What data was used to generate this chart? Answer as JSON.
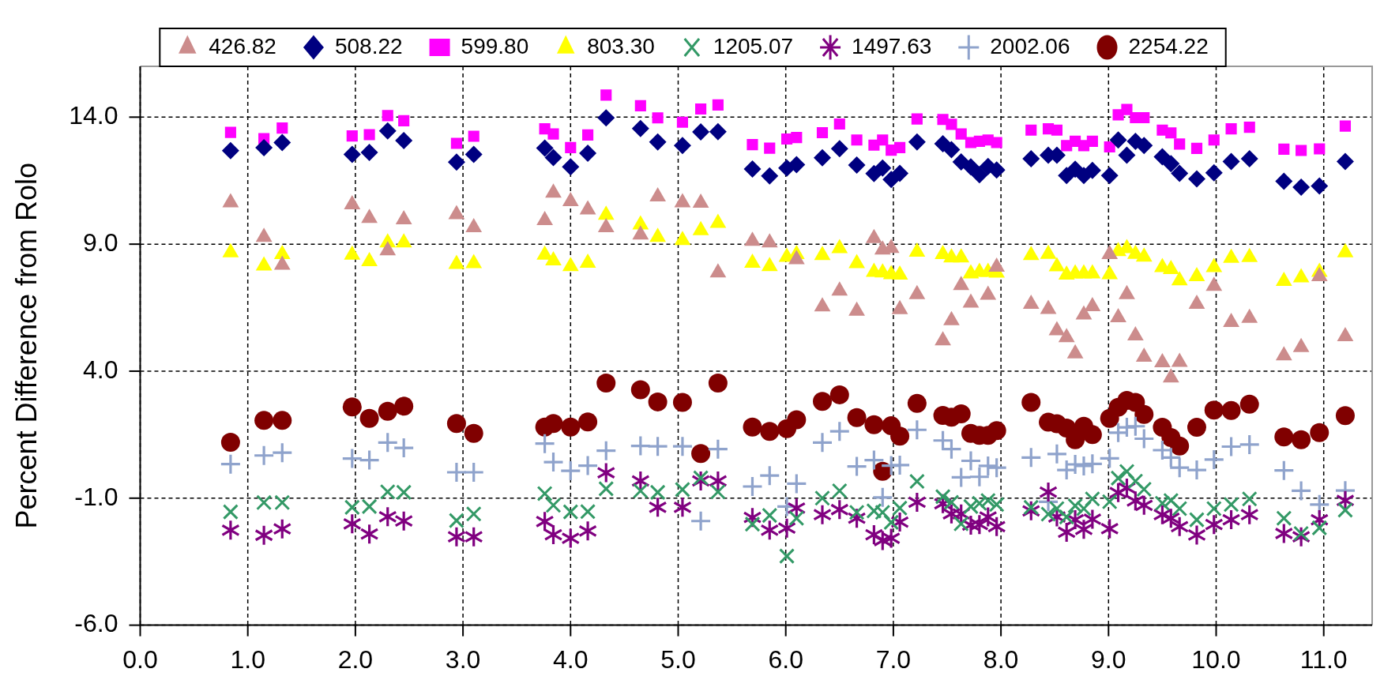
{
  "chart_data": {
    "type": "scatter",
    "ylabel": "Percent Difference from Rolo",
    "x": [
      0.84,
      1.15,
      1.32,
      1.97,
      2.13,
      2.3,
      2.45,
      2.94,
      3.1,
      3.76,
      3.84,
      4.0,
      4.16,
      4.33,
      4.65,
      4.81,
      5.04,
      5.21,
      5.37,
      5.69,
      5.85,
      6.01,
      6.1,
      6.34,
      6.5,
      6.66,
      6.82,
      6.9,
      6.98,
      7.06,
      7.22,
      7.46,
      7.54,
      7.63,
      7.72,
      7.8,
      7.88,
      7.96,
      8.28,
      8.44,
      8.52,
      8.61,
      8.69,
      8.77,
      8.85,
      9.01,
      9.09,
      9.17,
      9.25,
      9.33,
      9.5,
      9.58,
      9.66,
      9.82,
      9.98,
      10.14,
      10.31,
      10.63,
      10.79,
      10.96,
      11.2
    ],
    "series": [
      {
        "name": "426.82",
        "color": "#cc8c8c",
        "marker": "triangle",
        "values": [
          10.64,
          9.28,
          8.18,
          10.56,
          10.02,
          8.75,
          9.97,
          10.17,
          9.66,
          9.94,
          11.02,
          10.68,
          10.36,
          9.66,
          9.37,
          10.87,
          10.64,
          10.62,
          7.88,
          9.12,
          9.06,
          null,
          8.4,
          6.54,
          7.16,
          6.37,
          9.23,
          8.78,
          8.84,
          6.43,
          7.02,
          5.2,
          6.0,
          7.38,
          6.69,
          null,
          7.0,
          8.1,
          6.64,
          6.44,
          5.6,
          5.33,
          4.69,
          6.22,
          6.55,
          8.6,
          6.11,
          7.02,
          5.4,
          4.56,
          4.34,
          3.74,
          4.36,
          6.64,
          7.35,
          5.93,
          6.09,
          4.61,
          4.94,
          7.73,
          5.37
        ]
      },
      {
        "name": "508.22",
        "color": "#000080",
        "marker": "diamond",
        "values": [
          12.68,
          12.8,
          13.0,
          12.53,
          12.61,
          13.46,
          13.08,
          12.23,
          12.53,
          12.78,
          12.41,
          12.04,
          12.58,
          13.97,
          13.55,
          13.02,
          12.88,
          13.42,
          13.43,
          11.96,
          11.69,
          12.0,
          12.13,
          12.4,
          12.76,
          12.11,
          11.78,
          12.0,
          11.55,
          11.79,
          13.02,
          12.95,
          12.72,
          12.24,
          12.04,
          11.73,
          12.06,
          11.92,
          12.36,
          12.5,
          12.5,
          11.7,
          11.95,
          11.7,
          11.9,
          11.7,
          13.1,
          12.5,
          13.05,
          12.88,
          12.44,
          12.17,
          11.79,
          11.57,
          11.81,
          12.25,
          12.36,
          11.48,
          11.24,
          11.29,
          12.25
        ]
      },
      {
        "name": "599.80",
        "color": "#ff00ff",
        "marker": "square",
        "values": [
          13.4,
          13.15,
          13.57,
          13.26,
          13.31,
          14.06,
          13.86,
          12.97,
          13.25,
          13.54,
          13.34,
          12.8,
          13.3,
          14.87,
          14.45,
          13.97,
          13.8,
          14.32,
          14.48,
          12.92,
          12.78,
          13.14,
          13.2,
          13.39,
          13.73,
          13.1,
          12.9,
          13.1,
          12.7,
          12.8,
          13.93,
          13.91,
          13.72,
          13.34,
          13.0,
          13.05,
          13.1,
          13.0,
          13.49,
          13.54,
          13.49,
          12.88,
          13.05,
          12.88,
          13.05,
          12.83,
          14.09,
          14.3,
          13.98,
          13.98,
          13.49,
          13.38,
          12.94,
          12.77,
          13.1,
          13.54,
          13.6,
          12.74,
          12.69,
          12.75,
          13.65
        ]
      },
      {
        "name": "803.30",
        "color": "#ffff00",
        "marker": "triangle",
        "values": [
          8.67,
          8.15,
          8.6,
          8.58,
          8.32,
          9.06,
          9.06,
          8.21,
          8.24,
          8.58,
          8.35,
          8.13,
          8.26,
          10.15,
          9.77,
          9.28,
          9.15,
          9.54,
          9.83,
          8.26,
          8.13,
          8.49,
          8.6,
          8.56,
          8.83,
          8.24,
          7.9,
          7.88,
          7.81,
          7.79,
          8.69,
          8.6,
          8.47,
          8.47,
          7.84,
          7.9,
          7.9,
          7.87,
          8.56,
          8.61,
          8.12,
          7.79,
          7.84,
          7.84,
          7.84,
          7.81,
          8.72,
          8.83,
          8.61,
          8.5,
          8.09,
          8.01,
          7.57,
          7.73,
          8.09,
          8.45,
          8.48,
          7.54,
          7.68,
          7.9,
          8.67
        ]
      },
      {
        "name": "1205.07",
        "color": "#339966",
        "marker": "x",
        "values": [
          -1.54,
          -1.17,
          -1.17,
          -1.36,
          -1.33,
          -0.75,
          -0.77,
          -1.88,
          -1.62,
          -0.82,
          -1.28,
          -1.54,
          -1.53,
          -0.63,
          -0.71,
          -0.77,
          -0.66,
          -0.2,
          -0.75,
          -2.02,
          -1.68,
          -3.28,
          -1.79,
          -1.0,
          -0.71,
          -1.56,
          -1.5,
          -1.56,
          -1.95,
          -1.39,
          -0.34,
          -0.94,
          -1.16,
          -2.01,
          -1.33,
          -1.2,
          -1.09,
          -1.25,
          -1.36,
          -1.63,
          -1.41,
          -1.74,
          -1.3,
          -1.41,
          -1.03,
          -1.14,
          -0.21,
          0.05,
          -0.33,
          -0.65,
          -1.2,
          -1.09,
          -1.41,
          -1.85,
          -1.41,
          -1.25,
          -1.03,
          -1.79,
          -2.39,
          -2.17,
          -1.47
        ]
      },
      {
        "name": "1497.63",
        "color": "#800080",
        "marker": "star",
        "values": [
          -2.26,
          -2.46,
          -2.21,
          -2.01,
          -2.41,
          -1.73,
          -1.9,
          -2.52,
          -2.52,
          -1.92,
          -2.44,
          -2.58,
          -2.29,
          0.0,
          -0.32,
          -1.36,
          -1.36,
          -0.32,
          -0.32,
          -1.76,
          -2.26,
          -2.18,
          -1.39,
          -1.65,
          -1.45,
          -1.79,
          -2.44,
          -2.67,
          -2.58,
          -1.94,
          -1.16,
          -1.22,
          -1.62,
          -1.62,
          -2.06,
          -2.04,
          -1.74,
          -2.12,
          -1.5,
          -0.76,
          -1.74,
          -2.34,
          -1.85,
          -2.23,
          -1.83,
          -2.2,
          -0.78,
          -0.6,
          -1.11,
          -1.28,
          -1.65,
          -1.79,
          -2.12,
          -2.45,
          -2.04,
          -1.85,
          -1.65,
          -2.39,
          -2.52,
          -1.85,
          -1.09
        ]
      },
      {
        "name": "2002.06",
        "color": "#8fa3cc",
        "marker": "cross",
        "values": [
          0.34,
          0.68,
          0.79,
          0.56,
          0.5,
          1.19,
          0.98,
          0.02,
          0.02,
          1.15,
          0.42,
          0.08,
          0.28,
          0.87,
          1.06,
          1.04,
          1.04,
          -1.9,
          0.93,
          -0.54,
          -0.11,
          -1.33,
          -0.43,
          1.19,
          1.63,
          0.25,
          0.5,
          -0.97,
          0.28,
          0.3,
          1.69,
          1.27,
          0.93,
          -0.18,
          0.47,
          -0.16,
          0.27,
          0.2,
          0.6,
          -1.14,
          0.74,
          0.11,
          0.33,
          0.27,
          0.35,
          0.57,
          1.58,
          1.79,
          1.83,
          1.34,
          0.89,
          0.6,
          0.2,
          0.11,
          0.52,
          1.03,
          1.11,
          0.09,
          -0.71,
          -1.25,
          -0.7
        ]
      },
      {
        "name": "2254.22",
        "color": "#800000",
        "marker": "circle",
        "values": [
          1.2,
          2.06,
          2.06,
          2.59,
          2.14,
          2.42,
          2.62,
          1.94,
          1.55,
          1.8,
          1.94,
          1.8,
          2.0,
          3.53,
          3.27,
          2.79,
          2.77,
          0.76,
          3.53,
          1.8,
          1.63,
          1.74,
          2.09,
          2.81,
          3.07,
          2.17,
          1.89,
          0.06,
          1.85,
          1.44,
          2.73,
          2.26,
          2.19,
          2.32,
          1.55,
          1.47,
          1.47,
          1.66,
          2.77,
          1.99,
          1.93,
          1.76,
          1.3,
          1.83,
          1.5,
          2.14,
          2.58,
          2.85,
          2.77,
          2.3,
          1.79,
          1.39,
          1.05,
          1.79,
          2.47,
          2.45,
          2.7,
          1.41,
          1.3,
          1.58,
          2.25
        ]
      }
    ],
    "xlim": [
      0,
      11.45
    ],
    "ylim": [
      -6,
      16
    ],
    "xticks": [
      {
        "value": 0,
        "label": "0.0"
      },
      {
        "value": 1,
        "label": "1.0"
      },
      {
        "value": 2,
        "label": "2.0"
      },
      {
        "value": 3,
        "label": "3.0"
      },
      {
        "value": 4,
        "label": "4.0"
      },
      {
        "value": 5,
        "label": "5.0"
      },
      {
        "value": 6,
        "label": "6.0"
      },
      {
        "value": 7,
        "label": "7.0"
      },
      {
        "value": 8,
        "label": "8.0"
      },
      {
        "value": 9,
        "label": "9.0"
      },
      {
        "value": 10,
        "label": "10.0"
      },
      {
        "value": 11,
        "label": "11.0"
      }
    ],
    "yticks": [
      {
        "value": -6,
        "label": "-6.0"
      },
      {
        "value": -1,
        "label": "-1.0"
      },
      {
        "value": 4,
        "label": "4.0"
      },
      {
        "value": 9,
        "label": "9.0"
      },
      {
        "value": 14,
        "label": "14.0"
      }
    ],
    "grid": true,
    "legend": "top"
  }
}
